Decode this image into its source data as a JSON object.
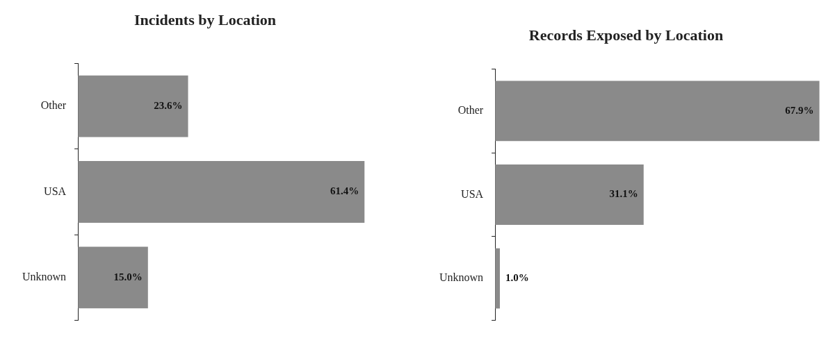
{
  "chart_data": [
    {
      "type": "bar",
      "orientation": "horizontal",
      "title": "Incidents by Location",
      "categories": [
        "Other",
        "USA",
        "Unknown"
      ],
      "values": [
        23.6,
        61.4,
        15.0
      ],
      "value_labels": [
        "23.6%",
        "61.4%",
        "15.0%"
      ],
      "color": "#8a8a8a",
      "legend": false,
      "grid": false,
      "tick_labels": "y"
    },
    {
      "type": "bar",
      "orientation": "horizontal",
      "title": "Records Exposed by Location",
      "categories": [
        "Other",
        "USA",
        "Unknown"
      ],
      "values": [
        67.9,
        31.1,
        1.0
      ],
      "value_labels": [
        "67.9%",
        "31.1%",
        "1.0%"
      ],
      "color": "#8a8a8a",
      "legend": false,
      "grid": false,
      "tick_labels": "y"
    }
  ]
}
